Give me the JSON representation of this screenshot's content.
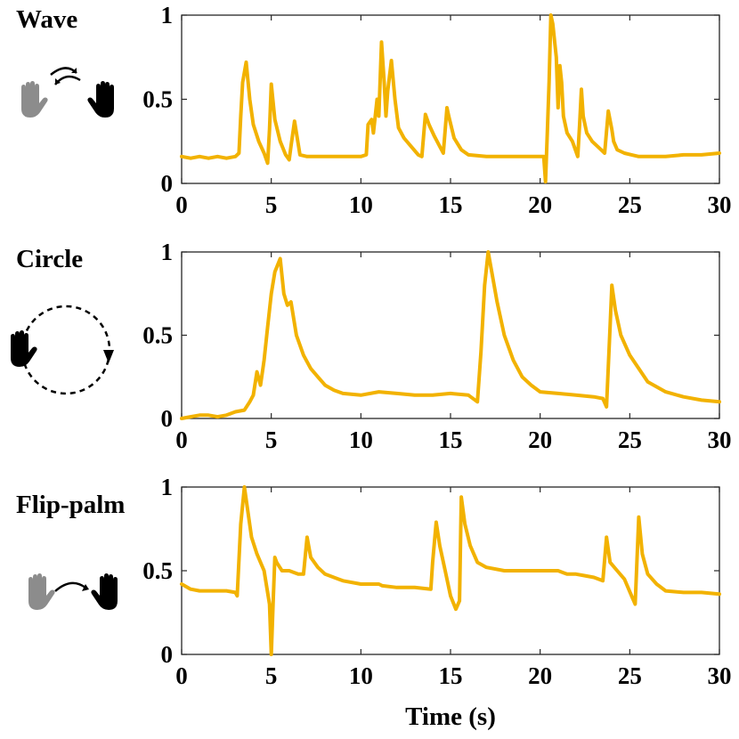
{
  "colors": {
    "line": "#F2B200",
    "hand_light": "#8c8c8c",
    "hand_dark": "#000000"
  },
  "xlabel": "Time (s)",
  "chart_data": [
    {
      "type": "line",
      "title": "Wave",
      "icon": "wave-gesture-icon",
      "xlim": [
        0,
        30
      ],
      "ylim": [
        0,
        1
      ],
      "xticks": [
        "0",
        "5",
        "10",
        "15",
        "20",
        "25",
        "30"
      ],
      "yticks": [
        "0",
        "0.5",
        "1"
      ],
      "x": [
        0,
        0.5,
        1,
        1.5,
        2,
        2.5,
        3,
        3.2,
        3.3,
        3.4,
        3.6,
        3.8,
        4.0,
        4.3,
        4.6,
        4.8,
        4.9,
        5.0,
        5.2,
        5.5,
        5.8,
        6.0,
        6.1,
        6.3,
        6.6,
        7,
        8,
        9,
        10,
        10.3,
        10.4,
        10.6,
        10.7,
        10.9,
        11.0,
        11.15,
        11.3,
        11.4,
        11.5,
        11.7,
        11.9,
        12.1,
        12.4,
        12.8,
        13.2,
        13.4,
        13.6,
        13.8,
        14.1,
        14.4,
        14.6,
        14.8,
        14.9,
        15.2,
        15.6,
        16,
        17,
        18,
        19,
        20.2,
        20.3,
        20.4,
        20.5,
        20.6,
        20.7,
        20.9,
        21.0,
        21.1,
        21.2,
        21.3,
        21.5,
        21.8,
        22.1,
        22.2,
        22.3,
        22.4,
        22.6,
        22.9,
        23.3,
        23.6,
        23.8,
        24.0,
        24.1,
        24.3,
        24.7,
        25.1,
        25.5,
        26,
        27,
        28,
        29,
        30
      ],
      "y": [
        0.16,
        0.15,
        0.16,
        0.15,
        0.16,
        0.15,
        0.16,
        0.18,
        0.4,
        0.6,
        0.72,
        0.5,
        0.35,
        0.25,
        0.18,
        0.12,
        0.32,
        0.59,
        0.38,
        0.25,
        0.17,
        0.14,
        0.22,
        0.37,
        0.17,
        0.16,
        0.16,
        0.16,
        0.16,
        0.17,
        0.35,
        0.38,
        0.3,
        0.5,
        0.4,
        0.84,
        0.6,
        0.4,
        0.55,
        0.73,
        0.5,
        0.33,
        0.27,
        0.22,
        0.17,
        0.16,
        0.41,
        0.35,
        0.28,
        0.22,
        0.18,
        0.45,
        0.4,
        0.27,
        0.2,
        0.17,
        0.16,
        0.16,
        0.16,
        0.16,
        0.01,
        0.3,
        0.6,
        1.0,
        0.95,
        0.75,
        0.45,
        0.7,
        0.6,
        0.4,
        0.3,
        0.25,
        0.16,
        0.35,
        0.56,
        0.4,
        0.3,
        0.25,
        0.21,
        0.18,
        0.43,
        0.32,
        0.25,
        0.2,
        0.18,
        0.17,
        0.16,
        0.16,
        0.16,
        0.17,
        0.17,
        0.18
      ]
    },
    {
      "type": "line",
      "title": "Circle",
      "icon": "circle-gesture-icon",
      "xlim": [
        0,
        30
      ],
      "ylim": [
        0,
        1
      ],
      "xticks": [
        "0",
        "5",
        "10",
        "15",
        "20",
        "25",
        "30"
      ],
      "yticks": [
        "0",
        "0.5",
        "1"
      ],
      "x": [
        0,
        0.5,
        1,
        1.5,
        2,
        2.5,
        3,
        3.5,
        3.8,
        4.0,
        4.2,
        4.4,
        4.6,
        4.8,
        5.0,
        5.2,
        5.5,
        5.7,
        5.9,
        6.1,
        6.4,
        6.8,
        7.2,
        7.6,
        8,
        8.5,
        9,
        10,
        11,
        12,
        13,
        14,
        15,
        16,
        16.5,
        16.7,
        16.9,
        17.1,
        17.3,
        17.6,
        18,
        18.5,
        19,
        19.5,
        20,
        21,
        22,
        23,
        23.5,
        23.7,
        23.9,
        24.0,
        24.2,
        24.5,
        25,
        25.5,
        26,
        27,
        28,
        29,
        30
      ],
      "y": [
        0.0,
        0.01,
        0.02,
        0.02,
        0.01,
        0.02,
        0.04,
        0.05,
        0.1,
        0.14,
        0.28,
        0.2,
        0.35,
        0.55,
        0.75,
        0.88,
        0.96,
        0.75,
        0.68,
        0.7,
        0.5,
        0.38,
        0.3,
        0.25,
        0.2,
        0.17,
        0.15,
        0.14,
        0.16,
        0.15,
        0.14,
        0.14,
        0.15,
        0.14,
        0.1,
        0.4,
        0.8,
        1.0,
        0.88,
        0.7,
        0.5,
        0.35,
        0.25,
        0.2,
        0.16,
        0.15,
        0.14,
        0.13,
        0.12,
        0.07,
        0.55,
        0.8,
        0.65,
        0.5,
        0.38,
        0.3,
        0.22,
        0.16,
        0.13,
        0.11,
        0.1
      ]
    },
    {
      "type": "line",
      "title": "Flip-palm",
      "icon": "flip-palm-gesture-icon",
      "xlim": [
        0,
        30
      ],
      "ylim": [
        0,
        1
      ],
      "xticks": [
        "0",
        "5",
        "10",
        "15",
        "20",
        "25",
        "30"
      ],
      "yticks": [
        "0",
        "0.5",
        "1"
      ],
      "x": [
        0,
        0.5,
        1,
        1.5,
        2,
        2.5,
        3.0,
        3.1,
        3.3,
        3.5,
        3.7,
        3.9,
        4.2,
        4.6,
        4.9,
        5.0,
        5.1,
        5.2,
        5.3,
        5.6,
        6.0,
        6.5,
        6.8,
        7.0,
        7.2,
        7.6,
        8,
        9,
        10,
        11,
        11.2,
        12,
        13,
        13.9,
        14.0,
        14.2,
        14.4,
        14.7,
        15.0,
        15.3,
        15.5,
        15.6,
        15.8,
        16.1,
        16.5,
        17,
        18,
        19,
        20,
        21,
        21.5,
        22,
        22.5,
        23,
        23.5,
        23.7,
        23.9,
        24.3,
        24.7,
        25.1,
        25.3,
        25.5,
        25.7,
        26,
        26.5,
        27,
        28,
        29,
        30
      ],
      "y": [
        0.42,
        0.39,
        0.38,
        0.38,
        0.38,
        0.38,
        0.37,
        0.35,
        0.78,
        1.0,
        0.85,
        0.7,
        0.6,
        0.5,
        0.3,
        0.0,
        0.3,
        0.58,
        0.55,
        0.5,
        0.5,
        0.48,
        0.48,
        0.7,
        0.58,
        0.52,
        0.48,
        0.44,
        0.42,
        0.42,
        0.41,
        0.4,
        0.4,
        0.39,
        0.55,
        0.79,
        0.65,
        0.5,
        0.35,
        0.27,
        0.32,
        0.94,
        0.78,
        0.65,
        0.55,
        0.52,
        0.5,
        0.5,
        0.5,
        0.5,
        0.48,
        0.48,
        0.47,
        0.46,
        0.44,
        0.7,
        0.55,
        0.5,
        0.45,
        0.35,
        0.3,
        0.82,
        0.6,
        0.48,
        0.42,
        0.38,
        0.37,
        0.37,
        0.36
      ]
    }
  ]
}
